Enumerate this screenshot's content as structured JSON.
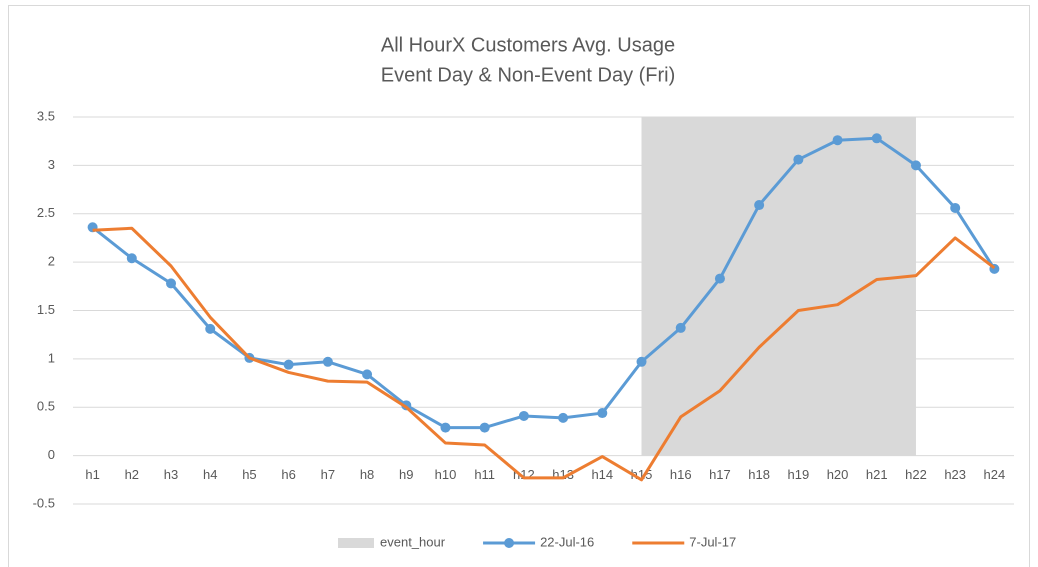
{
  "chart_data": {
    "type": "line",
    "title": "All HourX Customers Avg. Usage",
    "subtitle": "Event Day & Non-Event Day (Fri)",
    "categories": [
      "h1",
      "h2",
      "h3",
      "h4",
      "h5",
      "h6",
      "h7",
      "h8",
      "h9",
      "h10",
      "h11",
      "h12",
      "h13",
      "h14",
      "h15",
      "h16",
      "h17",
      "h18",
      "h19",
      "h20",
      "h21",
      "h22",
      "h23",
      "h24"
    ],
    "series": [
      {
        "name": "event_hour",
        "type": "area",
        "color": "#d9d9d9",
        "values": [
          null,
          null,
          null,
          null,
          null,
          null,
          null,
          null,
          null,
          null,
          null,
          null,
          null,
          null,
          3.5,
          3.5,
          3.5,
          3.5,
          3.5,
          3.5,
          3.5,
          3.5,
          null,
          null
        ]
      },
      {
        "name": "22-Jul-16",
        "type": "line",
        "color": "#5b9bd5",
        "marker": true,
        "values": [
          2.36,
          2.04,
          1.78,
          1.31,
          1.01,
          0.94,
          0.97,
          0.84,
          0.52,
          0.29,
          0.29,
          0.41,
          0.39,
          0.44,
          0.97,
          1.32,
          1.83,
          2.59,
          3.06,
          3.26,
          3.28,
          3.0,
          2.56,
          1.93
        ]
      },
      {
        "name": "7-Jul-17",
        "type": "line",
        "color": "#ed7d31",
        "marker": false,
        "values": [
          2.33,
          2.35,
          1.96,
          1.43,
          1.01,
          0.86,
          0.77,
          0.76,
          0.5,
          0.13,
          0.11,
          -0.23,
          -0.23,
          -0.01,
          -0.25,
          0.4,
          0.67,
          1.12,
          1.5,
          1.56,
          1.82,
          1.86,
          2.25,
          1.94
        ]
      }
    ],
    "ylim": [
      -0.5,
      3.5
    ],
    "yticks": [
      3.5,
      3,
      2.5,
      2,
      1.5,
      1,
      0.5,
      0,
      -0.5
    ],
    "grid": true,
    "legend": "bottom"
  }
}
